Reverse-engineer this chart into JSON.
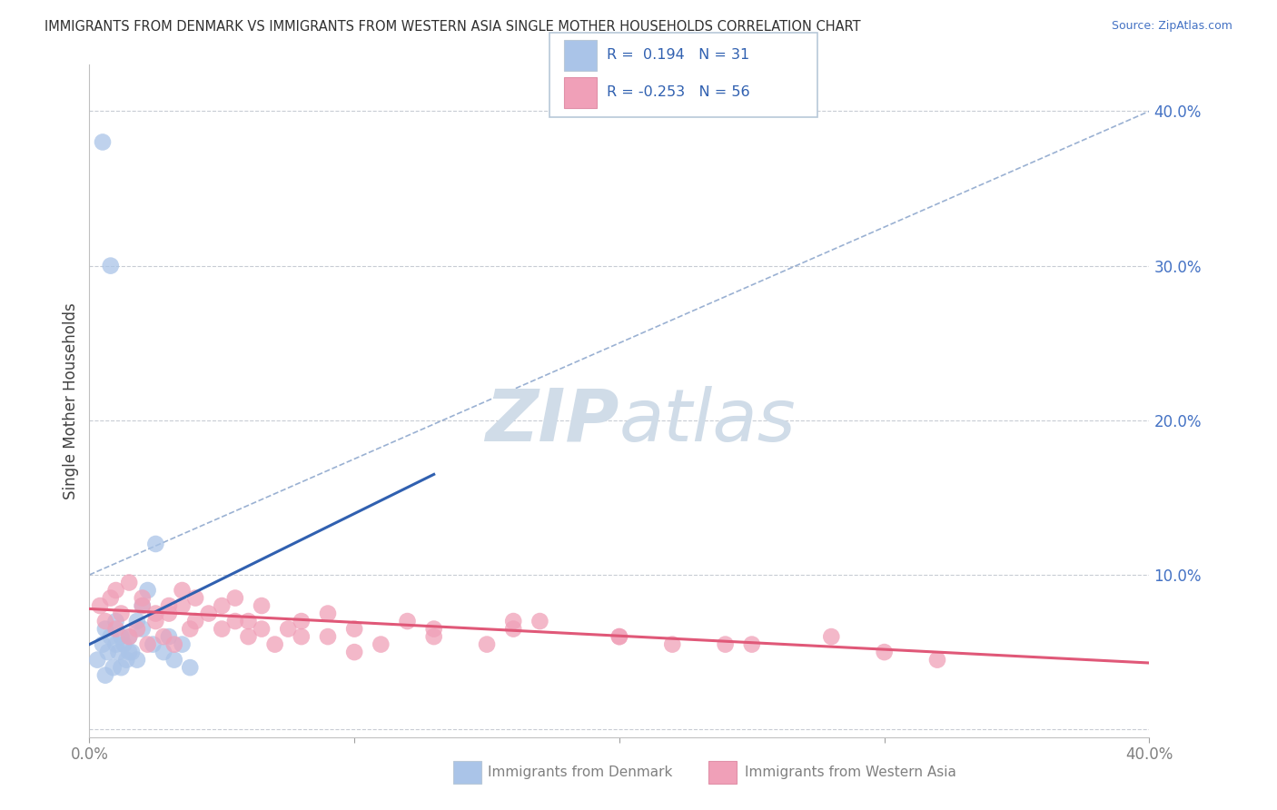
{
  "title": "IMMIGRANTS FROM DENMARK VS IMMIGRANTS FROM WESTERN ASIA SINGLE MOTHER HOUSEHOLDS CORRELATION CHART",
  "source": "Source: ZipAtlas.com",
  "ylabel": "Single Mother Households",
  "yticks": [
    0.0,
    0.1,
    0.2,
    0.3,
    0.4
  ],
  "ytick_labels": [
    "",
    "10.0%",
    "20.0%",
    "30.0%",
    "40.0%"
  ],
  "xlim": [
    0.0,
    0.4
  ],
  "ylim": [
    -0.005,
    0.43
  ],
  "denmark_R": 0.194,
  "denmark_N": 31,
  "western_asia_R": -0.253,
  "western_asia_N": 56,
  "denmark_color": "#aac4e8",
  "western_asia_color": "#f0a0b8",
  "denmark_line_color": "#3060b0",
  "western_asia_line_color": "#e05878",
  "diag_line_color": "#7090c0",
  "watermark": "ZIPat las",
  "watermark_color": "#d0dce8",
  "denmark_scatter_x": [
    0.003,
    0.005,
    0.006,
    0.007,
    0.008,
    0.009,
    0.01,
    0.011,
    0.012,
    0.013,
    0.014,
    0.015,
    0.016,
    0.018,
    0.02,
    0.022,
    0.024,
    0.025,
    0.028,
    0.03,
    0.032,
    0.035,
    0.038,
    0.005,
    0.008,
    0.01,
    0.015,
    0.02,
    0.012,
    0.018,
    0.006
  ],
  "denmark_scatter_y": [
    0.045,
    0.055,
    0.065,
    0.05,
    0.06,
    0.04,
    0.07,
    0.05,
    0.06,
    0.055,
    0.045,
    0.06,
    0.05,
    0.07,
    0.08,
    0.09,
    0.055,
    0.12,
    0.05,
    0.06,
    0.045,
    0.055,
    0.04,
    0.38,
    0.3,
    0.055,
    0.05,
    0.065,
    0.04,
    0.045,
    0.035
  ],
  "western_asia_scatter_x": [
    0.004,
    0.006,
    0.008,
    0.01,
    0.012,
    0.015,
    0.018,
    0.02,
    0.022,
    0.025,
    0.028,
    0.03,
    0.032,
    0.035,
    0.038,
    0.04,
    0.045,
    0.05,
    0.055,
    0.06,
    0.065,
    0.07,
    0.075,
    0.08,
    0.09,
    0.1,
    0.11,
    0.12,
    0.13,
    0.15,
    0.17,
    0.2,
    0.22,
    0.25,
    0.28,
    0.3,
    0.01,
    0.015,
    0.02,
    0.025,
    0.03,
    0.035,
    0.04,
    0.05,
    0.06,
    0.08,
    0.1,
    0.13,
    0.16,
    0.2,
    0.16,
    0.24,
    0.09,
    0.065,
    0.32,
    0.055
  ],
  "western_asia_scatter_y": [
    0.08,
    0.07,
    0.085,
    0.065,
    0.075,
    0.06,
    0.065,
    0.08,
    0.055,
    0.07,
    0.06,
    0.075,
    0.055,
    0.08,
    0.065,
    0.07,
    0.075,
    0.065,
    0.07,
    0.06,
    0.065,
    0.055,
    0.065,
    0.07,
    0.06,
    0.065,
    0.055,
    0.07,
    0.065,
    0.055,
    0.07,
    0.06,
    0.055,
    0.055,
    0.06,
    0.05,
    0.09,
    0.095,
    0.085,
    0.075,
    0.08,
    0.09,
    0.085,
    0.08,
    0.07,
    0.06,
    0.05,
    0.06,
    0.065,
    0.06,
    0.07,
    0.055,
    0.075,
    0.08,
    0.045,
    0.085
  ],
  "grid_color": "#c8ccd4",
  "background_color": "#ffffff",
  "legend_border_color": "#b8c8d8",
  "legend_text_color": "#3060b0",
  "bottom_legend_text_color": "#808080"
}
